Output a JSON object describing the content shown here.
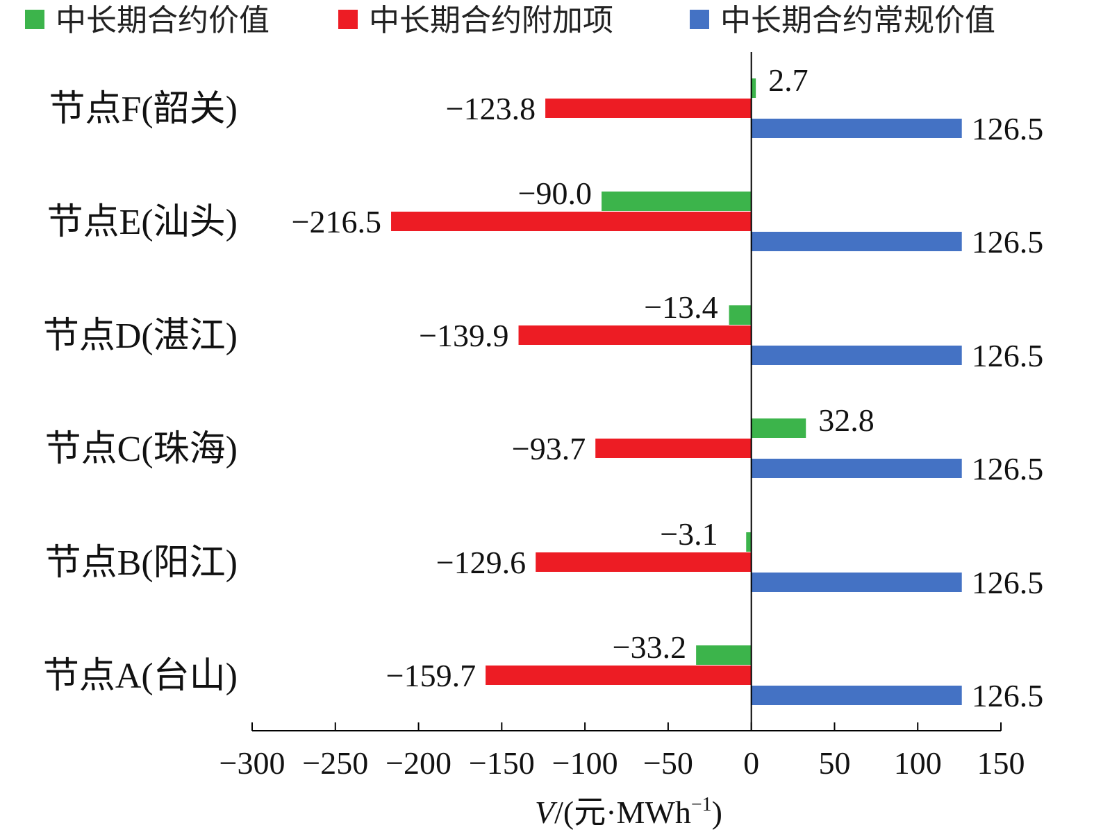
{
  "chart_data": {
    "type": "bar",
    "orientation": "horizontal",
    "categories": [
      "节点A(台山)",
      "节点B(阳江)",
      "节点C(珠海)",
      "节点D(湛江)",
      "节点E(汕头)",
      "节点F(韶关)"
    ],
    "series": [
      {
        "name": "中长期合约价值",
        "color": "#3cb44b",
        "values": [
          -33.2,
          -3.1,
          32.8,
          -13.4,
          -90.0,
          2.7
        ]
      },
      {
        "name": "中长期合约附加项",
        "color": "#ed1c24",
        "values": [
          -159.7,
          -129.6,
          -93.7,
          -139.9,
          -216.5,
          -123.8
        ]
      },
      {
        "name": "中长期合约常规价值",
        "color": "#4472c4",
        "values": [
          126.5,
          126.5,
          126.5,
          126.5,
          126.5,
          126.5
        ]
      }
    ],
    "value_labels": {
      "中长期合约价值": [
        "−33.2",
        "−3.1",
        "32.8",
        "−13.4",
        "−90.0",
        "2.7"
      ],
      "中长期合约附加项": [
        "−159.7",
        "−129.6",
        "−93.7",
        "−139.9",
        "−216.5",
        "−123.8"
      ],
      "中长期合约常规价值": [
        "126.5",
        "126.5",
        "126.5",
        "126.5",
        "126.5",
        "126.5"
      ]
    },
    "xlim": [
      -300,
      150
    ],
    "x_ticks": [
      -300,
      -250,
      -200,
      -150,
      -100,
      -50,
      0,
      50,
      100,
      150
    ],
    "x_tick_labels": [
      "−300",
      "−250",
      "−200",
      "−150",
      "−100",
      "−50",
      "0",
      "50",
      "100",
      "150"
    ],
    "xlabel": {
      "var": "V",
      "unit": "/(元·MWh",
      "sup": "−1",
      "close": ")"
    },
    "ylabel": "",
    "legend_position": "top",
    "grid": false
  }
}
